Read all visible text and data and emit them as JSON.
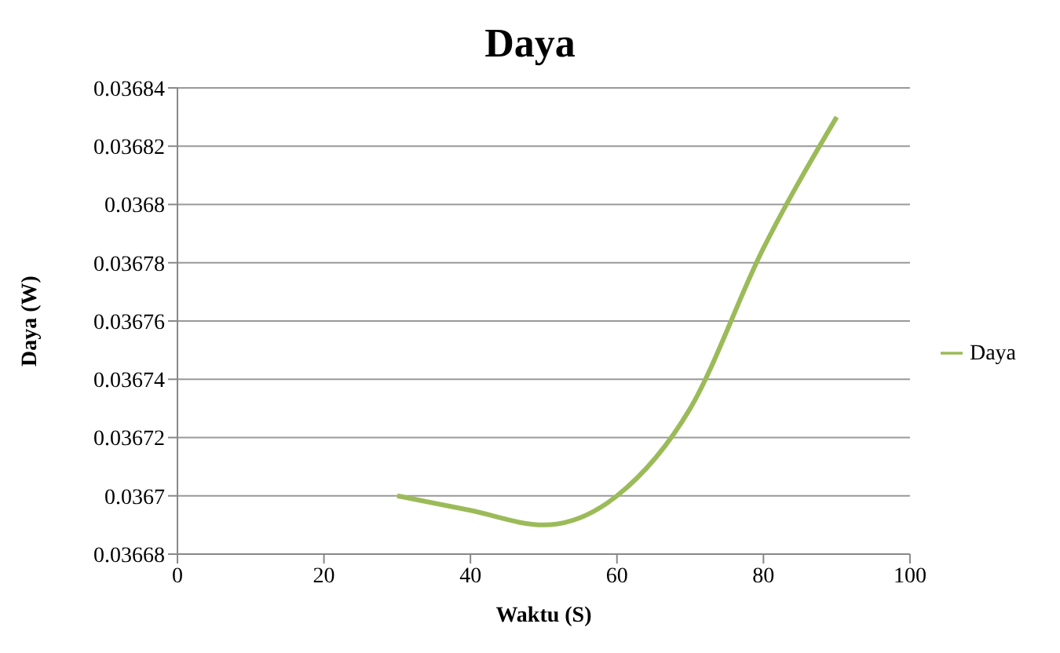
{
  "chart_data": {
    "type": "line",
    "title": "Daya",
    "xlabel": "Waktu (S)",
    "ylabel": "Daya (W)",
    "x": [
      30,
      40,
      50,
      60,
      70,
      80,
      90
    ],
    "series": [
      {
        "name": "Daya",
        "color": "#9bbb59",
        "values": [
          0.0367,
          0.036695,
          0.03669,
          0.0367,
          0.03673,
          0.036785,
          0.03683
        ]
      }
    ],
    "xlim": [
      0,
      100
    ],
    "xticks": [
      0,
      20,
      40,
      60,
      80,
      100
    ],
    "ylim": [
      0.03668,
      0.03684
    ],
    "yticks": [
      0.03668,
      0.0367,
      0.03672,
      0.03674,
      0.03676,
      0.03678,
      0.0368,
      0.03682,
      0.03684
    ],
    "grid": "y",
    "legend": "right",
    "marker": "none",
    "line_style": "solid"
  }
}
